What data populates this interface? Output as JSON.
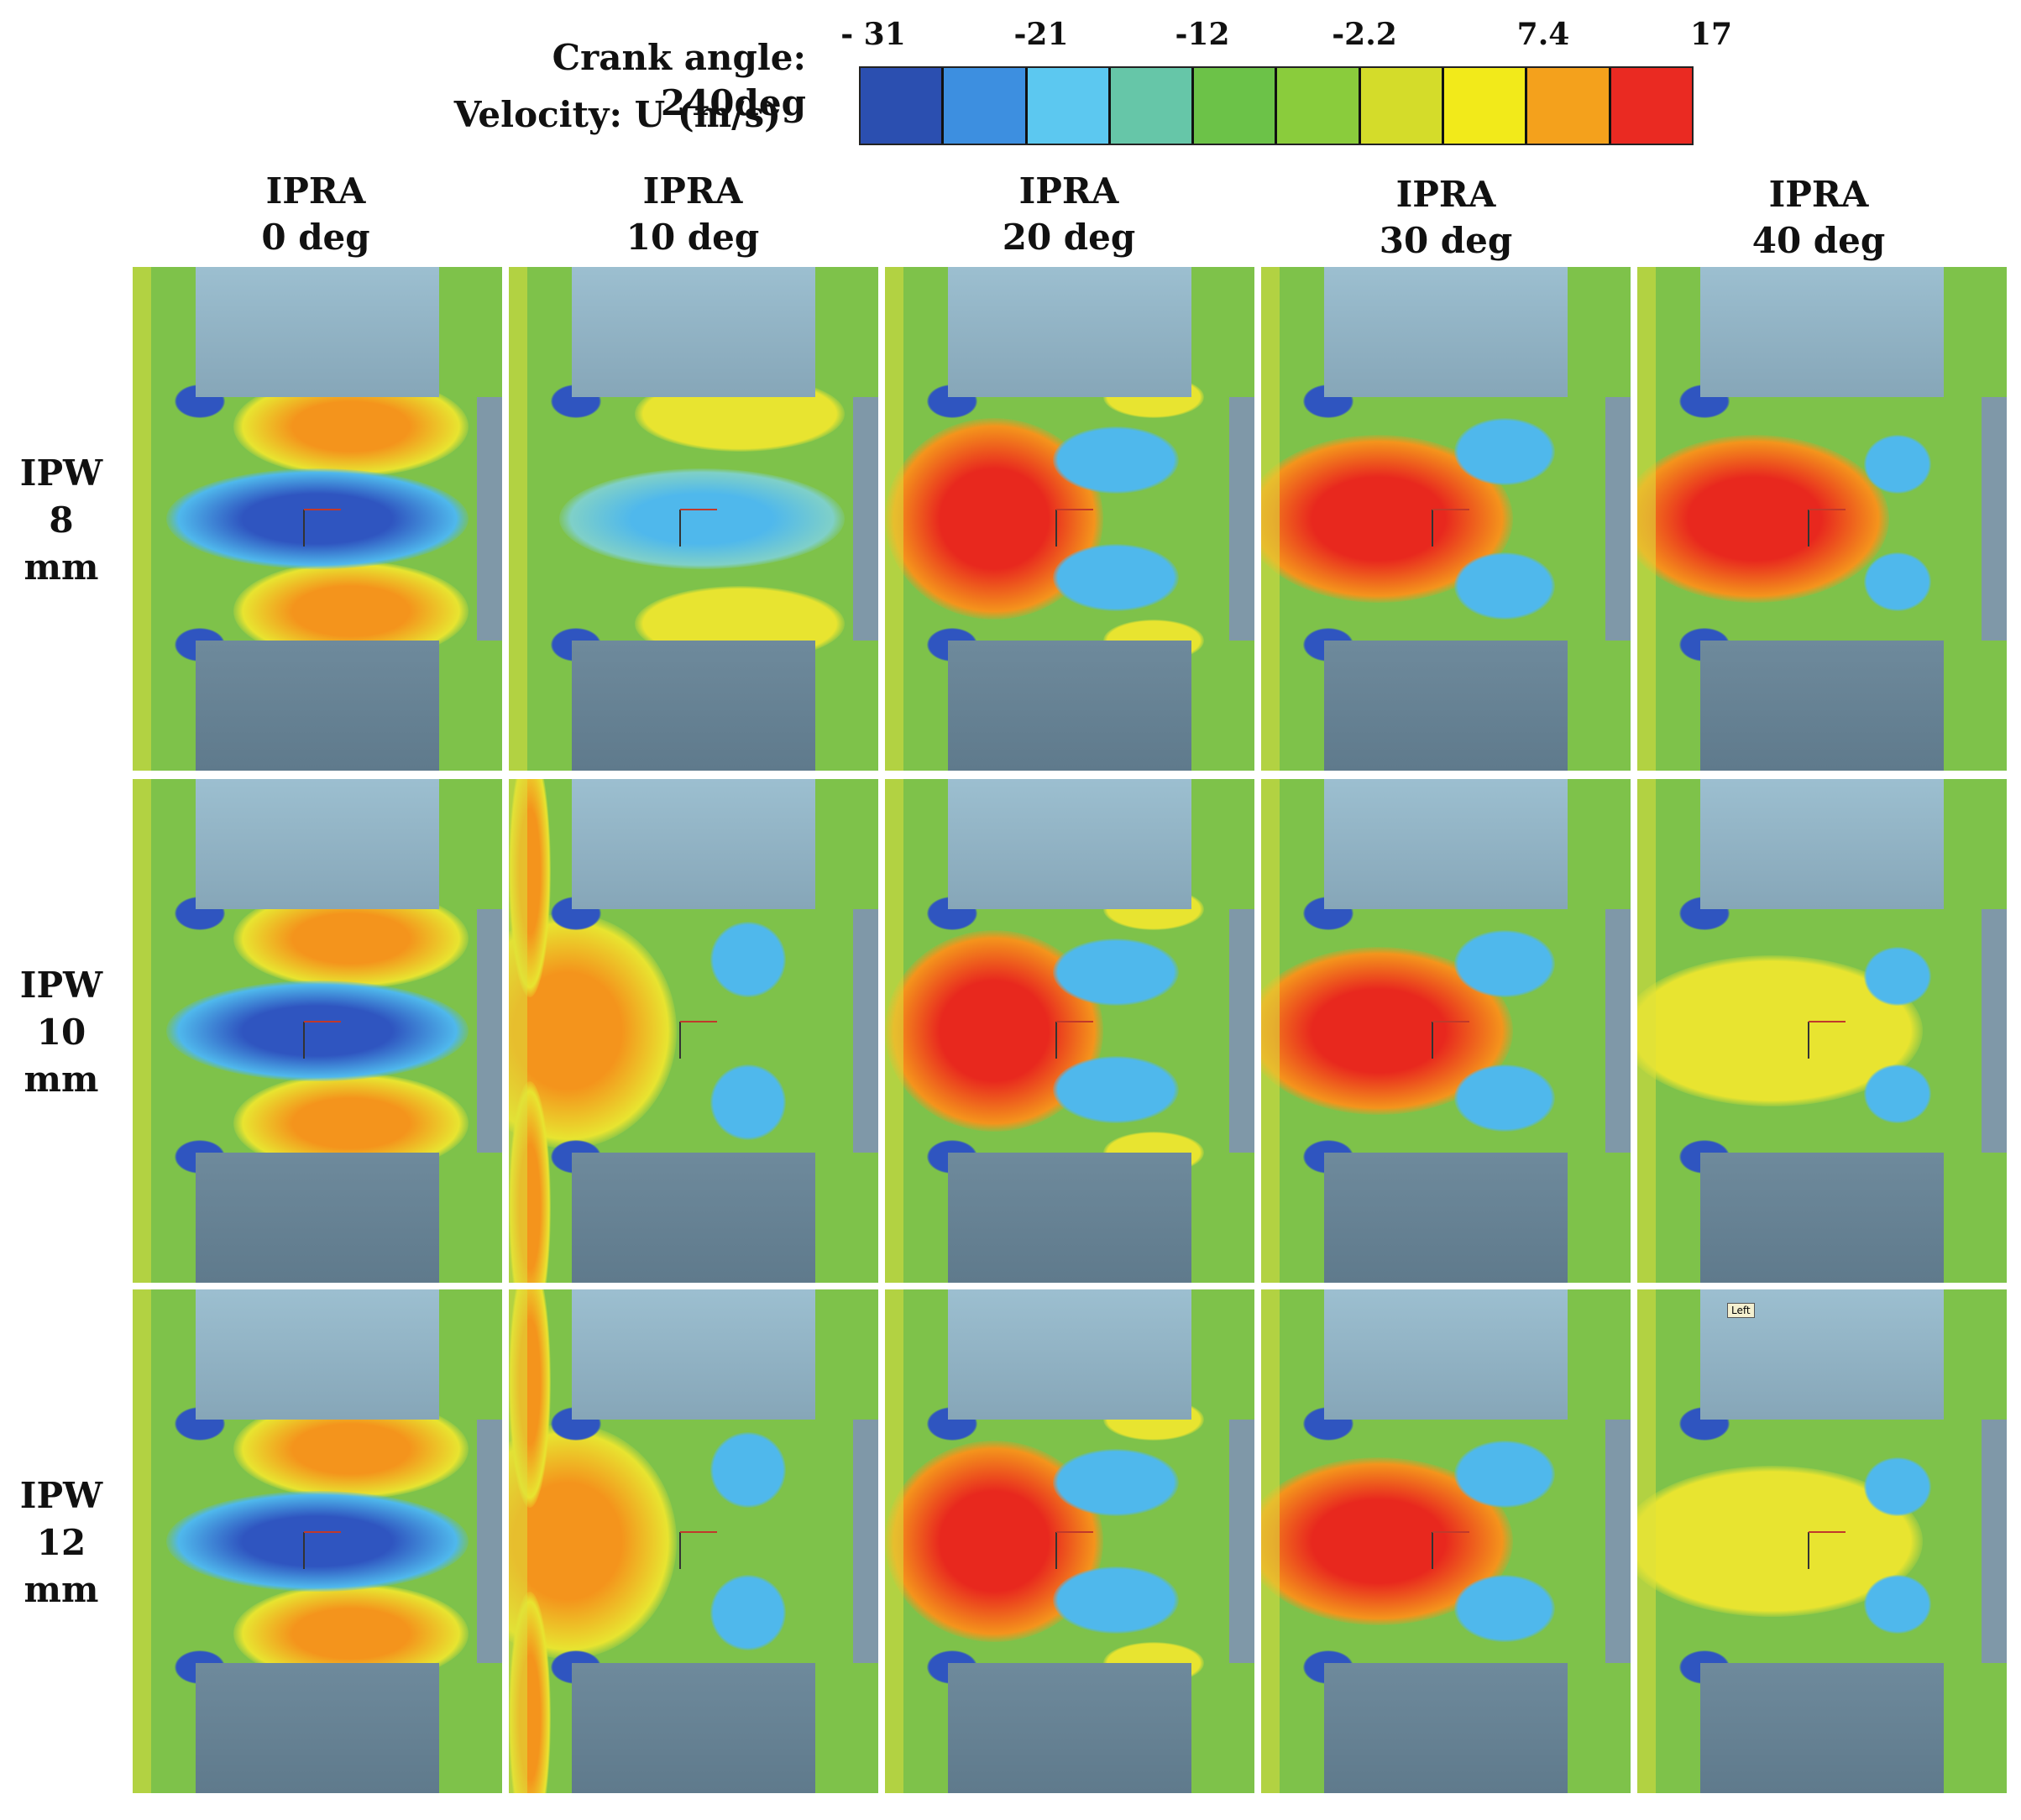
{
  "header": {
    "crank_angle": "Crank angle: 240deg",
    "velocity": "Velocity: U (m/s)"
  },
  "legend": {
    "ticks": [
      "- 31",
      "-21",
      "-12",
      "-2.2",
      "7.4",
      "17"
    ],
    "colors": [
      "#2b4fb0",
      "#3d8fe0",
      "#5cc8f0",
      "#66c6a8",
      "#6cc248",
      "#8acc3c",
      "#d4dc2a",
      "#f2ea1a",
      "#f4a11c",
      "#ea2a22"
    ]
  },
  "columns": [
    {
      "name": "IPRA",
      "value": "0 deg"
    },
    {
      "name": "IPRA",
      "value": "10 deg"
    },
    {
      "name": "IPRA",
      "value": "20 deg"
    },
    {
      "name": "IPRA",
      "value": "30 deg"
    },
    {
      "name": "IPRA",
      "value": "40 deg"
    }
  ],
  "rows": [
    {
      "name": "IPW",
      "value": "8",
      "unit": "mm"
    },
    {
      "name": "IPW",
      "value": "10",
      "unit": "mm"
    },
    {
      "name": "IPW",
      "value": "12",
      "unit": "mm"
    }
  ],
  "annotation": "Left",
  "colors": {
    "green": "#7ec24a",
    "block_top": "#9cbfd0",
    "block_bottom": "#5f7a8c",
    "yellow": "#e8e430",
    "orange": "#f4941c",
    "red": "#e8281e",
    "blue": "#2f55c0",
    "cyan": "#4fb8ec"
  }
}
